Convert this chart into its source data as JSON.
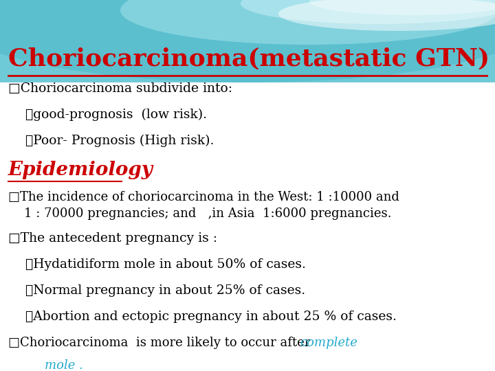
{
  "title": "Choriocarcinoma(metastatic GTN)",
  "title_color": "#cc0000",
  "title_fontsize": 26,
  "body_lines": [
    {
      "text": "□Choriocarcinoma subdivide into:",
      "style": "normal",
      "indent": 0,
      "color": "#000000",
      "fontsize": 13.5
    },
    {
      "text": "➤good-prognosis  (low risk).",
      "style": "normal",
      "indent": 1,
      "color": "#000000",
      "fontsize": 13.5
    },
    {
      "text": "➤Poor- Prognosis (High risk).",
      "style": "normal",
      "indent": 1,
      "color": "#000000",
      "fontsize": 13.5
    },
    {
      "text": "Epidemiology",
      "style": "heading",
      "indent": 0,
      "color": "#cc0000",
      "fontsize": 20
    },
    {
      "text": "□The incidence of choriocarcinoma in the West: 1 :10000 and\n    1 : 70000 pregnancies; and   ,in Asia  1:6000 pregnancies.",
      "style": "normal",
      "indent": 0,
      "color": "#000000",
      "fontsize": 13,
      "multiline": true
    },
    {
      "text": "□The antecedent pregnancy is :",
      "style": "normal",
      "indent": 0,
      "color": "#000000",
      "fontsize": 13.5
    },
    {
      "text": "➤Hydatidiform mole in about 50% of cases.",
      "style": "normal",
      "indent": 1,
      "color": "#000000",
      "fontsize": 13.5
    },
    {
      "text": "➤Normal pregnancy in about 25% of cases.",
      "style": "normal",
      "indent": 1,
      "color": "#000000",
      "fontsize": 13.5
    },
    {
      "text": "➤Abortion and ectopic pregnancy in about 25 % of cases.",
      "style": "normal",
      "indent": 1,
      "color": "#000000",
      "fontsize": 13.5
    },
    {
      "text": "□Choriocarcinoma  is more likely to occur after ",
      "style": "mixed",
      "indent": 0,
      "color": "#000000",
      "fontsize": 13,
      "suffix": "complete",
      "suffix2": "    mole .",
      "suffix_color": "#22aacc",
      "suffix_style": "italic"
    }
  ],
  "wave_color1": "#7dcfdb",
  "wave_color2": "#a8e4ec",
  "wave_color3": "#d0f0f5"
}
